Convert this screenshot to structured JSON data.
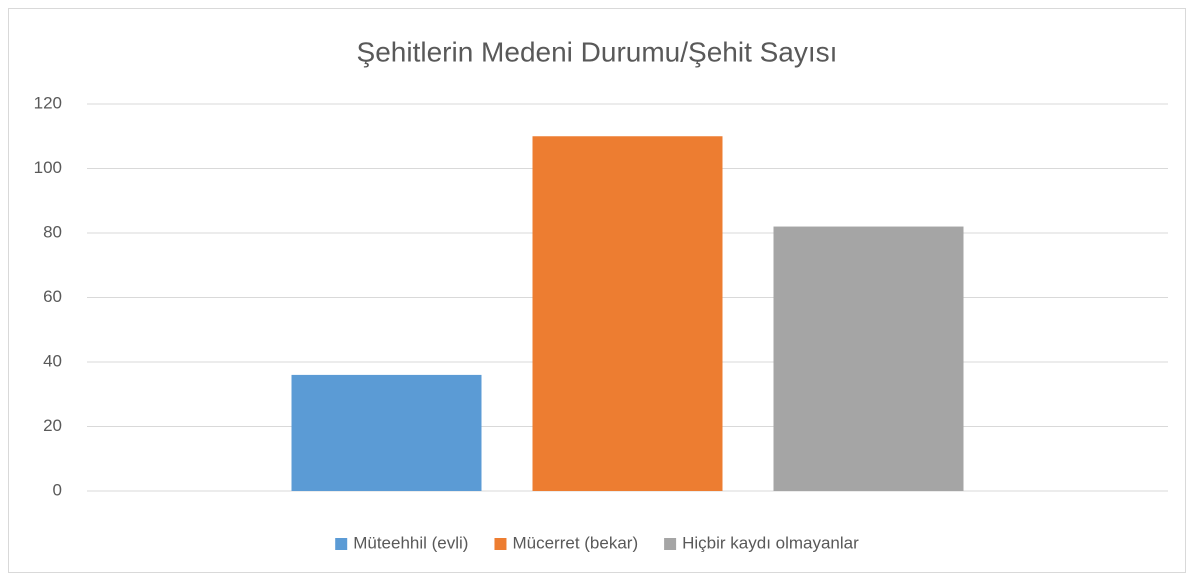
{
  "chart_data": {
    "type": "bar",
    "title": "Şehitlerin Medeni Durumu/Şehit Sayısı",
    "categories": [
      null
    ],
    "series": [
      {
        "name": "Müteehhil (evli)",
        "color": "#5b9bd5",
        "values": [
          36
        ]
      },
      {
        "name": "Mücerret (bekar)",
        "color": "#ed7d31",
        "values": [
          110
        ]
      },
      {
        "name": "Hiçbir kaydı olmayanlar",
        "color": "#a5a5a5",
        "values": [
          82
        ]
      }
    ],
    "ylim": [
      0,
      120
    ],
    "yticks": [
      0,
      20,
      40,
      60,
      80,
      100,
      120
    ],
    "grid": true,
    "legend": "bottom"
  }
}
